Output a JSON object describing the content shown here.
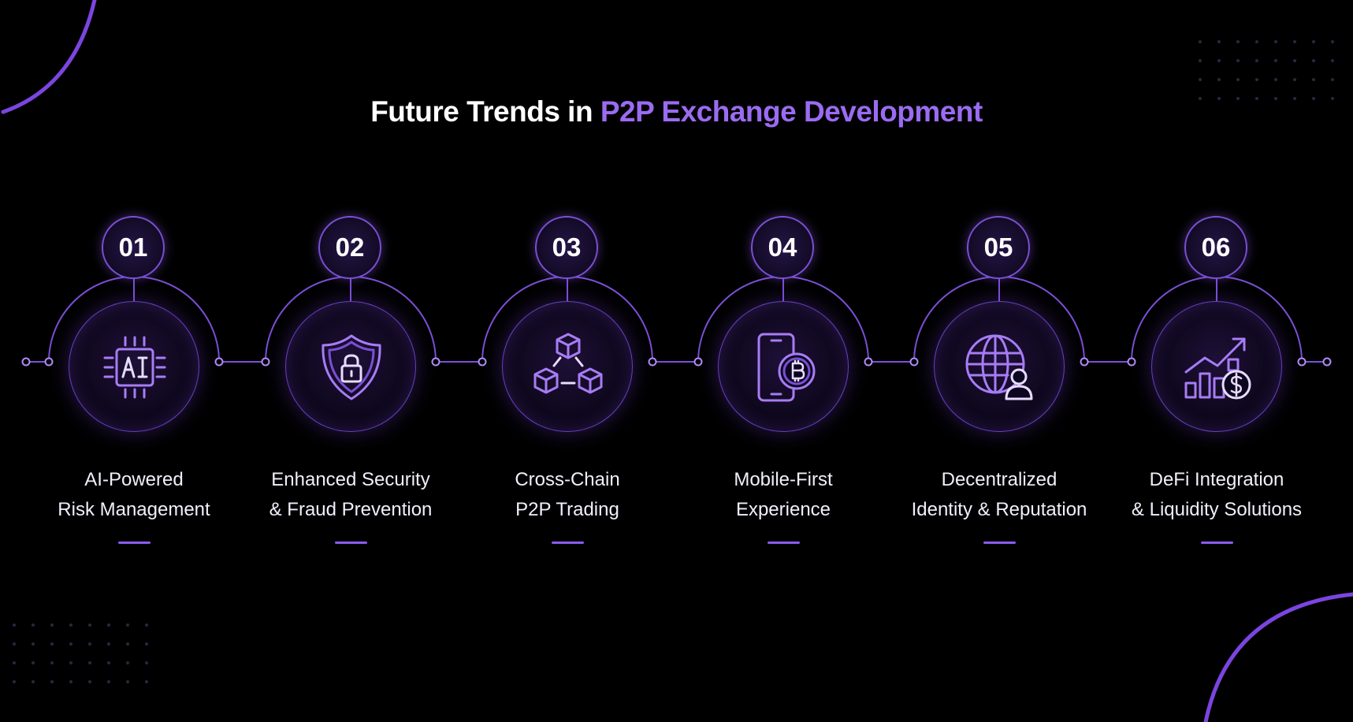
{
  "title": {
    "prefix": "Future Trends in ",
    "highlight": "P2P Exchange Development"
  },
  "colors": {
    "background": "#000000",
    "accent": "#9b6bf2",
    "line": "#7a4fd6"
  },
  "steps": [
    {
      "number": "01",
      "icon": "ai-chip-icon",
      "line1": "AI-Powered",
      "line2": "Risk Management"
    },
    {
      "number": "02",
      "icon": "security-shield-icon",
      "line1": "Enhanced Security",
      "line2": "& Fraud Prevention"
    },
    {
      "number": "03",
      "icon": "cross-chain-blocks-icon",
      "line1": "Cross-Chain",
      "line2": "P2P Trading"
    },
    {
      "number": "04",
      "icon": "mobile-bitcoin-icon",
      "line1": "Mobile-First",
      "line2": "Experience"
    },
    {
      "number": "05",
      "icon": "globe-identity-icon",
      "line1": "Decentralized",
      "line2": "Identity & Reputation"
    },
    {
      "number": "06",
      "icon": "growth-chart-dollar-icon",
      "line1": "DeFi Integration",
      "line2": "& Liquidity Solutions"
    }
  ]
}
